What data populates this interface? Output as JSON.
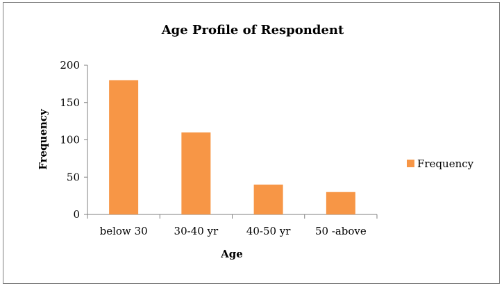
{
  "chart_data": {
    "type": "bar",
    "title": "Age Profile of Respondent",
    "xlabel": "Age",
    "ylabel": "Frequency",
    "categories": [
      "below 30",
      "30-40 yr",
      "40-50 yr",
      "50 -above"
    ],
    "series": [
      {
        "name": "Frequency",
        "values": [
          180,
          110,
          40,
          30
        ],
        "color": "#f79646"
      }
    ],
    "ylim": [
      0,
      200
    ],
    "yticks": [
      "0",
      "50",
      "100",
      "150",
      "200"
    ],
    "grid": false,
    "legend_position": "right"
  }
}
